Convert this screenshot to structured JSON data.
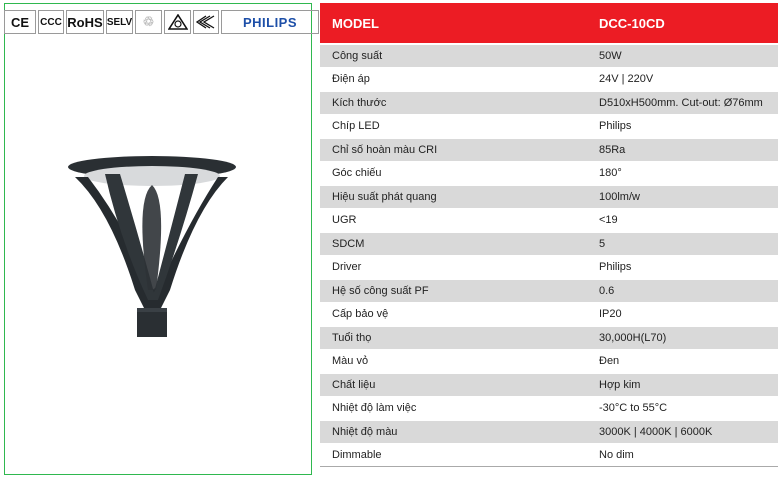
{
  "certifications": [
    {
      "label": "CE",
      "icon": "ce-mark-icon"
    },
    {
      "label": "CCC",
      "icon": "ccc-mark-icon"
    },
    {
      "label": "RoHS",
      "icon": "rohs-mark-icon"
    },
    {
      "label": "SELV",
      "icon": "selv-mark-icon"
    },
    {
      "label": "",
      "icon": "recycle-icon"
    },
    {
      "label": "",
      "icon": "rcm-mark-icon"
    },
    {
      "label": "",
      "icon": "ctick-mark-icon"
    }
  ],
  "brand": "PHILIPS",
  "colors": {
    "header": "#ec1c24",
    "stripe": "#d9d9d9",
    "border": "#2fb84f",
    "brand": "#1d4fa8"
  },
  "table": {
    "header": {
      "label": "MODEL",
      "value": "DCC-10CD"
    },
    "rows": [
      {
        "label": "Công suất",
        "value": "50W"
      },
      {
        "label": "Điện áp",
        "value": "24V | 220V"
      },
      {
        "label": "Kích thước",
        "value": "D510xH500mm. Cut-out: Ø76mm"
      },
      {
        "label": "Chíp LED",
        "value": "Philips"
      },
      {
        "label": "Chỉ số hoàn màu CRI",
        "value": "85Ra"
      },
      {
        "label": "Góc chiếu",
        "value": "180°"
      },
      {
        "label": "Hiệu suất phát quang",
        "value": "100lm/w"
      },
      {
        "label": "UGR",
        "value": "<19"
      },
      {
        "label": "SDCM",
        "value": "5"
      },
      {
        "label": "Driver",
        "value": "Philips"
      },
      {
        "label": "Hệ số công suất PF",
        "value": "0.6"
      },
      {
        "label": "Cấp bảo vệ",
        "value": "IP20"
      },
      {
        "label": "Tuổi thọ",
        "value": "30,000H(L70)"
      },
      {
        "label": "Màu vỏ",
        "value": "Đen"
      },
      {
        "label": "Chất liệu",
        "value": "Hợp kim"
      },
      {
        "label": "Nhiệt độ làm việc",
        "value": "-30°C to 55°C"
      },
      {
        "label": "Nhiệt độ màu",
        "value": "3000K | 4000K | 6000K"
      },
      {
        "label": "Dimmable",
        "value": "No dim"
      }
    ]
  }
}
